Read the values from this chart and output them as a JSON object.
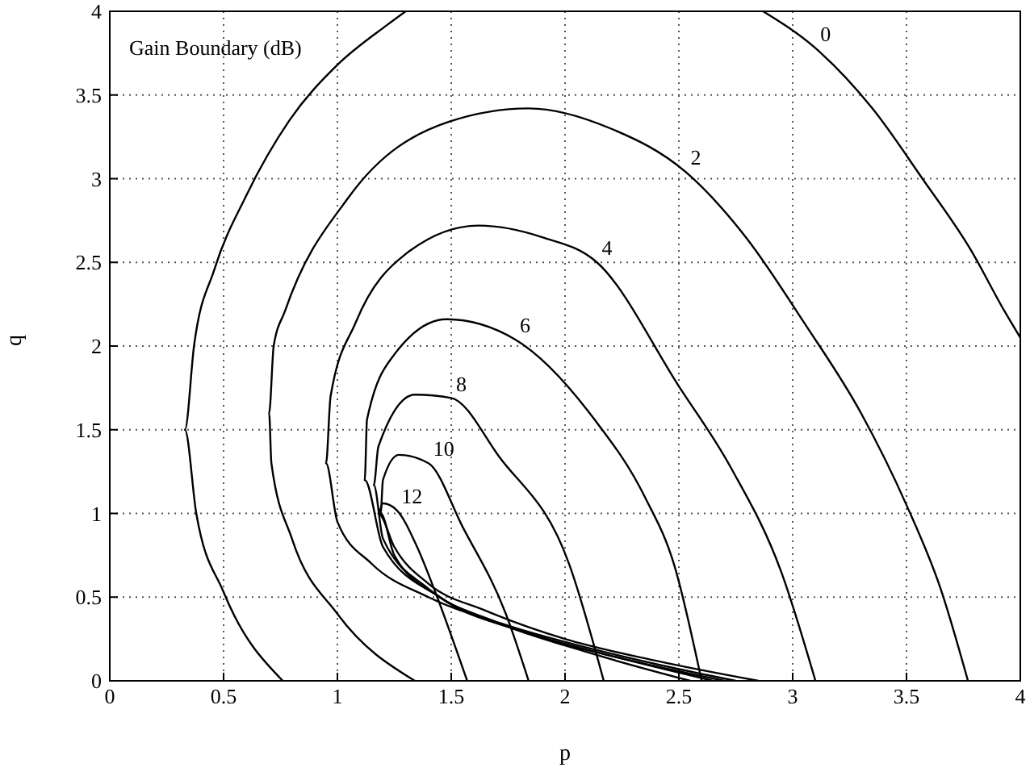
{
  "chart_data": {
    "type": "line",
    "title": "Gain Boundary (dB)",
    "xlabel": "p",
    "ylabel": "q",
    "xlim": [
      0,
      4
    ],
    "ylim": [
      0,
      4
    ],
    "xticks": [
      0,
      0.5,
      1,
      1.5,
      2,
      2.5,
      3,
      3.5,
      4
    ],
    "yticks": [
      0,
      0.5,
      1,
      1.5,
      2,
      2.5,
      3,
      3.5,
      4
    ],
    "grid": true,
    "marker": "none",
    "line_style": "solid",
    "series": [
      {
        "name": "0",
        "color": "#000000",
        "x": [
          0.76,
          0.5,
          0.38,
          0.33,
          0.37,
          0.46,
          0.6,
          0.79,
          1.0,
          1.22,
          1.3,
          2.0,
          2.87,
          3.1,
          3.35,
          3.57,
          3.78,
          3.93,
          4.0
        ],
        "values": [
          0,
          0.53,
          1.0,
          1.5,
          2.0,
          2.46,
          2.9,
          3.35,
          3.68,
          3.92,
          4.0,
          null,
          4.0,
          3.78,
          3.42,
          3.0,
          2.58,
          2.21,
          2.05
        ]
      },
      {
        "name": "2",
        "color": "#000000",
        "x": [
          1.34,
          1.0,
          0.8,
          0.71,
          0.7,
          0.72,
          0.77,
          1.05,
          1.49,
          1.84,
          2.2,
          2.53,
          2.8,
          3.05,
          3.3,
          3.5,
          3.65,
          3.77
        ],
        "values": [
          0,
          0.4,
          0.85,
          1.3,
          1.6,
          2.0,
          2.21,
          2.89,
          3.34,
          3.42,
          3.3,
          3.04,
          2.64,
          2.14,
          1.6,
          1.05,
          0.55,
          0
        ]
      },
      {
        "name": "4",
        "color": "#000000",
        "x": [
          2.75,
          2.5,
          2.15,
          1.75,
          1.4,
          1.15,
          1.0,
          0.95,
          0.97,
          1.08,
          1.3,
          1.62,
          1.9,
          2.14,
          2.5,
          2.73,
          2.95,
          3.1
        ],
        "values": [
          0,
          0.07,
          0.18,
          0.33,
          0.5,
          0.7,
          0.95,
          1.3,
          1.7,
          2.14,
          2.55,
          2.72,
          2.65,
          2.5,
          1.76,
          1.27,
          0.65,
          0
        ]
      },
      {
        "name": "6",
        "color": "#000000",
        "x": [
          2.65,
          2.2,
          1.8,
          1.45,
          1.2,
          1.12,
          1.13,
          1.25,
          1.48,
          1.78,
          2.13,
          2.35,
          2.48,
          2.6
        ],
        "values": [
          0,
          0.15,
          0.3,
          0.5,
          0.8,
          1.2,
          1.56,
          1.95,
          2.16,
          2.04,
          1.56,
          1.1,
          0.69,
          0
        ]
      },
      {
        "name": "8",
        "color": "#000000",
        "x": [
          2.55,
          2.1,
          1.7,
          1.4,
          1.2,
          1.16,
          1.18,
          1.34,
          1.5,
          1.71,
          2.02,
          2.17
        ],
        "values": [
          0,
          0.17,
          0.35,
          0.55,
          0.85,
          1.17,
          1.4,
          1.71,
          1.69,
          1.34,
          0.69,
          0
        ]
      },
      {
        "name": "10",
        "color": "#000000",
        "x": [
          2.7,
          2.2,
          1.8,
          1.45,
          1.25,
          1.19,
          1.2,
          1.27,
          1.4,
          1.55,
          1.74,
          1.84
        ],
        "values": [
          0,
          0.15,
          0.3,
          0.5,
          0.75,
          1.0,
          1.2,
          1.35,
          1.3,
          0.92,
          0.4,
          0
        ]
      },
      {
        "name": "12",
        "color": "#000000",
        "x": [
          2.85,
          2.4,
          2.0,
          1.65,
          1.4,
          1.25,
          1.18,
          1.2,
          1.26,
          1.35,
          1.43,
          1.57
        ],
        "values": [
          0,
          0.12,
          0.25,
          0.42,
          0.58,
          0.8,
          1.0,
          1.06,
          1.02,
          0.8,
          0.53,
          0
        ]
      }
    ]
  }
}
